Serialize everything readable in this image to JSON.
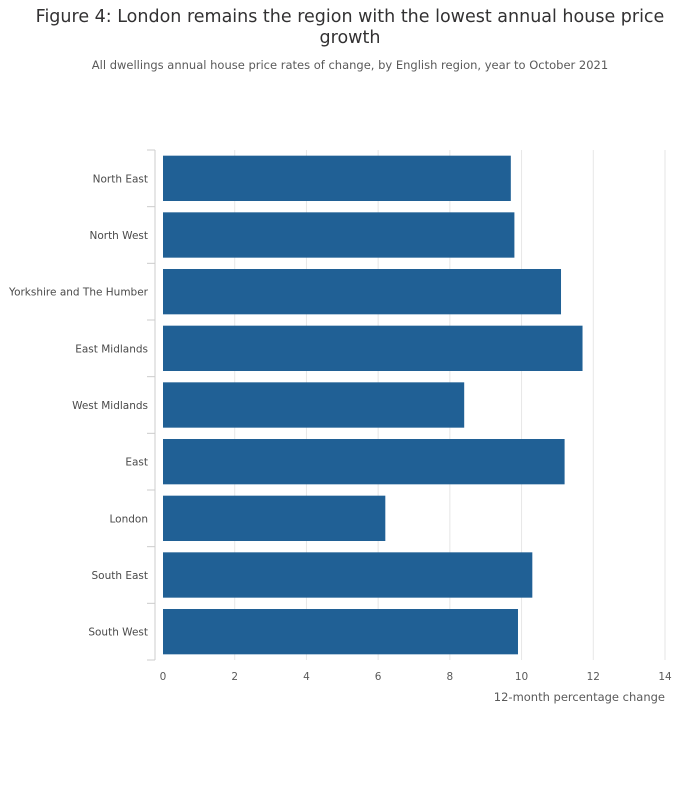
{
  "chart_data": {
    "type": "bar",
    "orientation": "horizontal",
    "title": "Figure 4: London remains the region with the lowest annual house price growth",
    "subtitle": "All dwellings annual house price rates of change, by English region, year to October 2021",
    "xlabel": "12-month percentage change",
    "ylabel": "",
    "xlim": [
      0,
      14
    ],
    "xticks": [
      0,
      2,
      4,
      6,
      8,
      10,
      12,
      14
    ],
    "grid": true,
    "categories": [
      "North East",
      "North West",
      "Yorkshire and The Humber",
      "East Midlands",
      "West Midlands",
      "East",
      "London",
      "South East",
      "South West"
    ],
    "values": [
      9.7,
      9.8,
      11.1,
      11.7,
      8.4,
      11.2,
      6.2,
      10.3,
      9.9
    ],
    "bar_color": "#206095"
  }
}
